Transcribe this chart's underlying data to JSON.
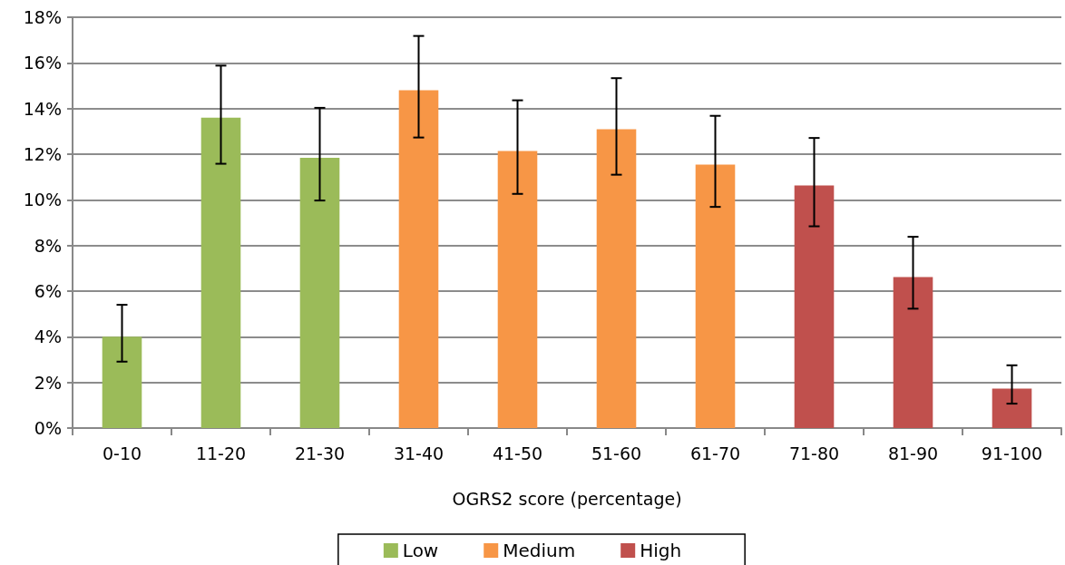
{
  "chart_data": {
    "type": "bar",
    "xlabel": "OGRS2 score (percentage)",
    "categories": [
      "0-10",
      "11-20",
      "21-30",
      "31-40",
      "41-50",
      "51-60",
      "61-70",
      "71-80",
      "81-90",
      "91-100"
    ],
    "series": [
      {
        "name": "Low",
        "color": "#9bbb59",
        "values": [
          4.0,
          13.6,
          11.84,
          null,
          null,
          null,
          null,
          null,
          null,
          null
        ],
        "errors": [
          [
            2.91,
            5.4
          ],
          [
            11.58,
            15.88
          ],
          [
            9.97,
            14.03
          ],
          null,
          null,
          null,
          null,
          null,
          null,
          null
        ]
      },
      {
        "name": "Medium",
        "color": "#f79646",
        "values": [
          null,
          null,
          null,
          14.8,
          12.14,
          13.09,
          11.54,
          null,
          null,
          null
        ],
        "errors": [
          null,
          null,
          null,
          [
            12.73,
            17.18
          ],
          [
            10.26,
            14.36
          ],
          [
            11.1,
            15.33
          ],
          [
            9.69,
            13.68
          ],
          null,
          null,
          null
        ]
      },
      {
        "name": "High",
        "color": "#c0504d",
        "values": [
          null,
          null,
          null,
          null,
          null,
          null,
          null,
          10.63,
          6.62,
          1.73
        ],
        "errors": [
          null,
          null,
          null,
          null,
          null,
          null,
          null,
          [
            8.84,
            12.71
          ],
          [
            5.23,
            8.38
          ],
          [
            1.07,
            2.75
          ]
        ]
      }
    ],
    "stacked": true,
    "ylim": [
      0,
      18
    ],
    "yticks": [
      {
        "value": 0,
        "label": "0%"
      },
      {
        "value": 2,
        "label": "2%"
      },
      {
        "value": 4,
        "label": "4%"
      },
      {
        "value": 6,
        "label": "6%"
      },
      {
        "value": 8,
        "label": "8%"
      },
      {
        "value": 10,
        "label": "10%"
      },
      {
        "value": 12,
        "label": "12%"
      },
      {
        "value": 14,
        "label": "14%"
      },
      {
        "value": 16,
        "label": "16%"
      },
      {
        "value": 18,
        "label": "18%"
      }
    ],
    "grid": "y",
    "legend": "bottom"
  }
}
